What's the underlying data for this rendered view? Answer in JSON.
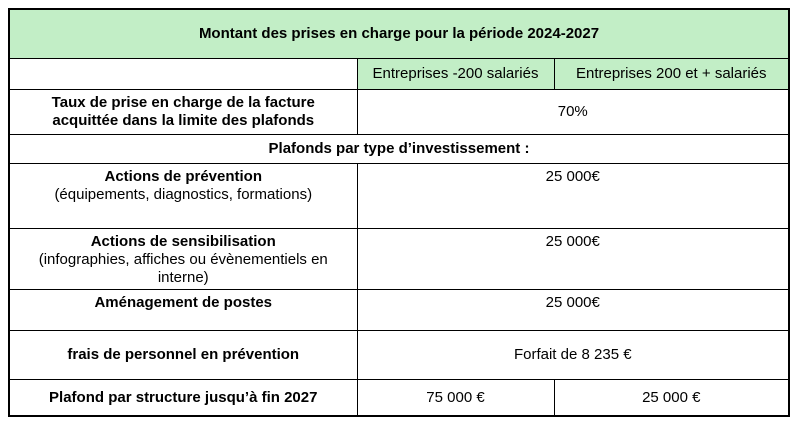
{
  "colors": {
    "header_green": "#c2eec6",
    "border": "#000000",
    "text": "#000000",
    "page_background": "#ffffff"
  },
  "table": {
    "title": "Montant des prises en charge pour la période 2024-2027",
    "col_headers": {
      "small_companies": "Entreprises -200 salariés",
      "large_companies": "Entreprises 200 et + salariés"
    },
    "rate_row": {
      "label": "Taux de prise en charge de la facture acquittée dans la limite des plafonds",
      "value": "70%"
    },
    "section_header": "Plafonds par type d’investissement :",
    "investment_rows": [
      {
        "label": "Actions de prévention",
        "sublabel": "(équipements, diagnostics, formations)",
        "value": "25 000€"
      },
      {
        "label": "Actions de sensibilisation",
        "sublabel": "(infographies, affiches ou évènementiels en interne)",
        "value": "25 000€"
      },
      {
        "label": "Aménagement de postes",
        "sublabel": "",
        "value": "25 000€"
      }
    ],
    "personnel_row": {
      "label": "frais de personnel en prévention",
      "value": "Forfait de 8 235 €"
    },
    "ceiling_row": {
      "label": "Plafond par structure jusqu’à fin 2027",
      "value_small_companies": "75 000 €",
      "value_large_companies": "25 000 €"
    }
  }
}
